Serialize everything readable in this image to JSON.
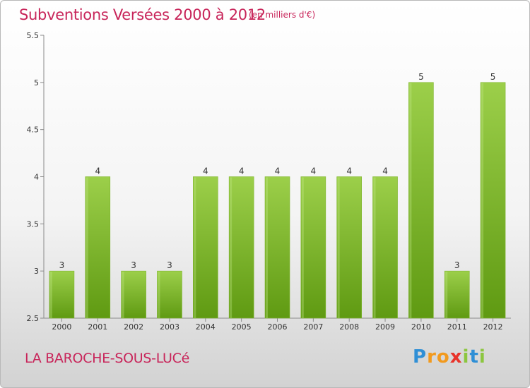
{
  "header": {
    "title": "Subventions Versées 2000 à 2012",
    "unit": "(en milliers d'€)"
  },
  "footer": {
    "commune": "LA BAROCHE-SOUS-LUCé",
    "logo": "Proxiti"
  },
  "colors": {
    "accent": "#c8255a",
    "bar_top": "#9ccf4a",
    "bar_bottom": "#5f9a12"
  },
  "chart_data": {
    "type": "bar",
    "title": "Subventions Versées 2000 à 2012",
    "subtitle": "(en milliers d'€)",
    "xlabel": "",
    "ylabel": "",
    "categories": [
      "2000",
      "2001",
      "2002",
      "2003",
      "2004",
      "2005",
      "2006",
      "2007",
      "2008",
      "2009",
      "2010",
      "2011",
      "2012"
    ],
    "values": [
      3,
      4,
      3,
      3,
      4,
      4,
      4,
      4,
      4,
      4,
      5,
      3,
      5
    ],
    "data_labels": [
      "3",
      "4",
      "3",
      "3",
      "4",
      "4",
      "4",
      "4",
      "4",
      "4",
      "5",
      "3",
      "5"
    ],
    "ylim": [
      2.5,
      5.5
    ],
    "yticks": [
      2.5,
      3,
      3.5,
      4,
      4.5,
      5,
      5.5
    ],
    "ytick_labels": [
      "2.5",
      "3",
      "3.5",
      "4",
      "4.5",
      "5",
      "5.5"
    ],
    "grid": false,
    "legend": "none"
  }
}
